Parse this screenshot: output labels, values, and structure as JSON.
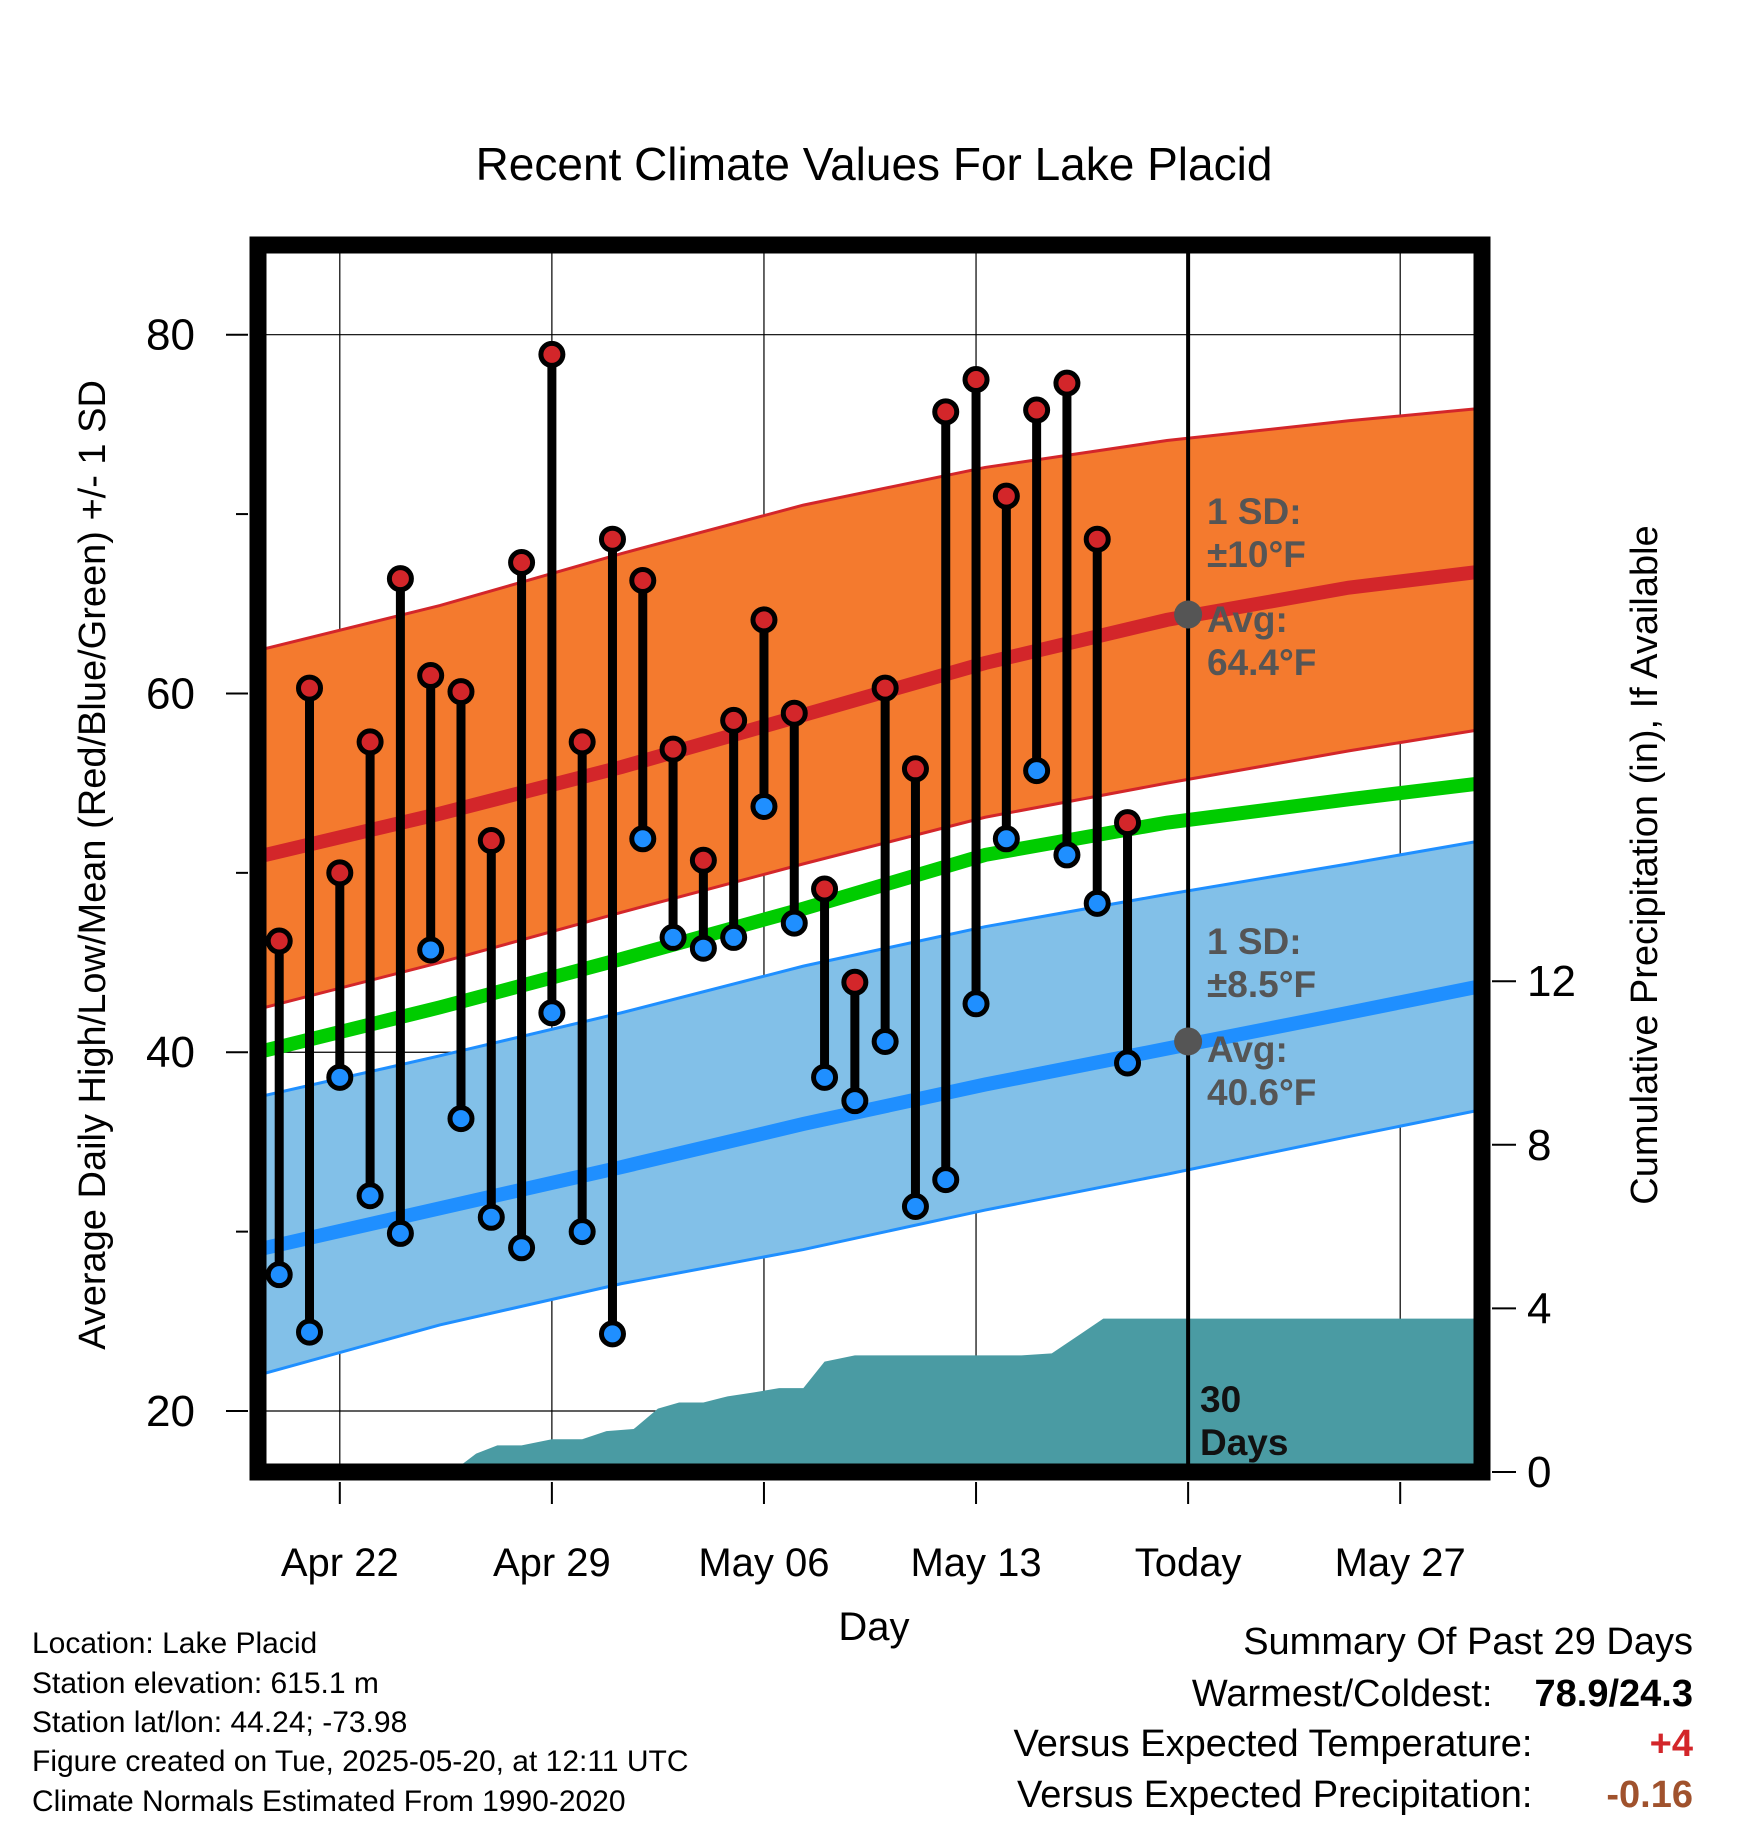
{
  "chart_data": {
    "type": "line",
    "title": "Recent Climate Values For Lake Placid",
    "xlabel": "Day",
    "ylabel": "Average Daily High/Low/Mean (Red/Blue/Green) +/- 1 SD",
    "ylabel_right": "Cumulative Precipitation (in), If Available",
    "x_ticks": [
      "Apr 22",
      "Apr 29",
      "May 06",
      "May 13",
      "Today",
      "May 27"
    ],
    "x_tick_days": [
      0,
      7,
      14,
      21,
      28,
      35
    ],
    "xlim_days": [
      -2.7,
      37.7
    ],
    "ylim": [
      16.6,
      85.0
    ],
    "y_ticks": [
      20,
      40,
      60,
      80
    ],
    "y2lim": [
      0,
      30
    ],
    "y2_ticks": [
      0,
      4,
      8,
      12
    ],
    "grid": true,
    "normals": {
      "days": [
        -2.7,
        3.3,
        9.3,
        15.3,
        21.3,
        27.3,
        33.3,
        37.7
      ],
      "high_mean": [
        50.9,
        53.3,
        55.9,
        58.8,
        61.7,
        64.1,
        65.9,
        66.8
      ],
      "high_sd_upper": [
        62.4,
        64.9,
        67.8,
        70.5,
        72.6,
        74.1,
        75.2,
        75.9
      ],
      "high_sd_lower": [
        42.4,
        45.0,
        47.8,
        50.5,
        53.1,
        55.0,
        56.8,
        58.0
      ],
      "mean": [
        40.0,
        42.5,
        45.2,
        48.0,
        51.0,
        52.8,
        54.1,
        55.0
      ],
      "low_mean": [
        29.0,
        31.3,
        33.6,
        36.0,
        38.2,
        40.2,
        42.2,
        43.7
      ],
      "low_sd_upper": [
        37.5,
        39.8,
        42.2,
        44.8,
        47.0,
        48.8,
        50.5,
        51.8
      ],
      "low_sd_lower": [
        22.0,
        24.8,
        27.1,
        29.0,
        31.2,
        33.2,
        35.3,
        36.8
      ]
    },
    "series": [
      {
        "name": "High",
        "days": [
          -2,
          -1,
          0,
          1,
          2,
          3,
          4,
          5,
          6,
          7,
          8,
          9,
          10,
          11,
          12,
          13,
          14,
          15,
          16,
          17,
          18,
          19,
          20,
          21,
          22,
          23,
          24,
          25,
          26
        ],
        "values": [
          46.2,
          60.3,
          50.0,
          57.3,
          66.4,
          61.0,
          60.1,
          51.8,
          67.3,
          78.9,
          57.3,
          68.6,
          66.3,
          56.9,
          50.7,
          58.5,
          64.1,
          58.9,
          49.1,
          43.9,
          60.3,
          55.8,
          75.7,
          77.5,
          71.0,
          75.8,
          77.3,
          68.6,
          52.8
        ]
      },
      {
        "name": "Low",
        "days": [
          -2,
          -1,
          0,
          1,
          2,
          3,
          4,
          5,
          6,
          7,
          8,
          9,
          10,
          11,
          12,
          13,
          14,
          15,
          16,
          17,
          18,
          19,
          20,
          21,
          22,
          23,
          24,
          25,
          26
        ],
        "values": [
          27.6,
          24.4,
          38.6,
          32.0,
          29.9,
          45.7,
          36.3,
          30.8,
          29.1,
          42.2,
          30.0,
          24.3,
          51.9,
          46.4,
          45.8,
          46.4,
          53.7,
          47.2,
          38.6,
          37.3,
          40.6,
          31.4,
          32.9,
          42.7,
          51.9,
          55.7,
          51.0,
          48.3,
          39.4
        ]
      },
      {
        "name": "Cumulative Precipitation",
        "days": [
          3.7,
          4.5,
          5.2,
          6.0,
          7.0,
          8.0,
          8.8,
          9.7,
          10.5,
          11.2,
          12.0,
          12.8,
          13.7,
          14.5,
          15.3,
          16.0,
          17.0,
          17.7,
          18.5,
          19.5,
          20.5,
          21.5,
          22.5,
          23.5,
          24.5,
          25.2,
          25.8,
          26.5,
          27.5,
          28.5,
          37.7
        ],
        "values": [
          0.0,
          0.45,
          0.65,
          0.65,
          0.8,
          0.8,
          1.0,
          1.05,
          1.55,
          1.7,
          1.7,
          1.85,
          1.95,
          2.05,
          2.05,
          2.7,
          2.85,
          2.85,
          2.85,
          2.85,
          2.85,
          2.85,
          2.85,
          2.9,
          3.4,
          3.75,
          3.75,
          3.75,
          3.75,
          3.75,
          3.75
        ]
      }
    ],
    "annotations": {
      "today_day": 28,
      "high_avg_marker": 64.4,
      "low_avg_marker": 40.6,
      "high_sd_label": "1 SD:",
      "high_sd_value": "±10°F",
      "high_avg_label": "Avg:",
      "high_avg_value": "64.4°F",
      "low_sd_label": "1 SD:",
      "low_sd_value": "±8.5°F",
      "low_avg_label": "Avg:",
      "low_avg_value": "40.6°F",
      "days_label_1": "30",
      "days_label_2": "Days"
    },
    "colors": {
      "high_band": "#f47a2e",
      "high_line": "#d3262a",
      "mean_line": "#00cc00",
      "low_band": "#82c0e8",
      "low_line": "#1f8fff",
      "precip": "#4a9ba3",
      "high_dot": "#d3262a",
      "low_dot": "#1f8fff",
      "annotation": "#555555"
    }
  },
  "meta": {
    "location": "Location: Lake Placid",
    "elevation": "Station elevation: 615.1 m",
    "latlon": "Station lat/lon: 44.24; -73.98",
    "created": "Figure created on Tue, 2025-05-20, at 12:11 UTC",
    "normals": "Climate Normals Estimated From 1990-2020"
  },
  "summary": {
    "title": "Summary Of Past 29 Days",
    "warm_cold_label": "Warmest/Coldest:",
    "warm_cold_value": "78.9/24.3",
    "temp_label": "Versus Expected Temperature:",
    "temp_value": "+4",
    "temp_color": "#d3262a",
    "precip_label": "Versus Expected Precipitation:",
    "precip_value": "-0.16",
    "precip_color": "#a0522d"
  }
}
